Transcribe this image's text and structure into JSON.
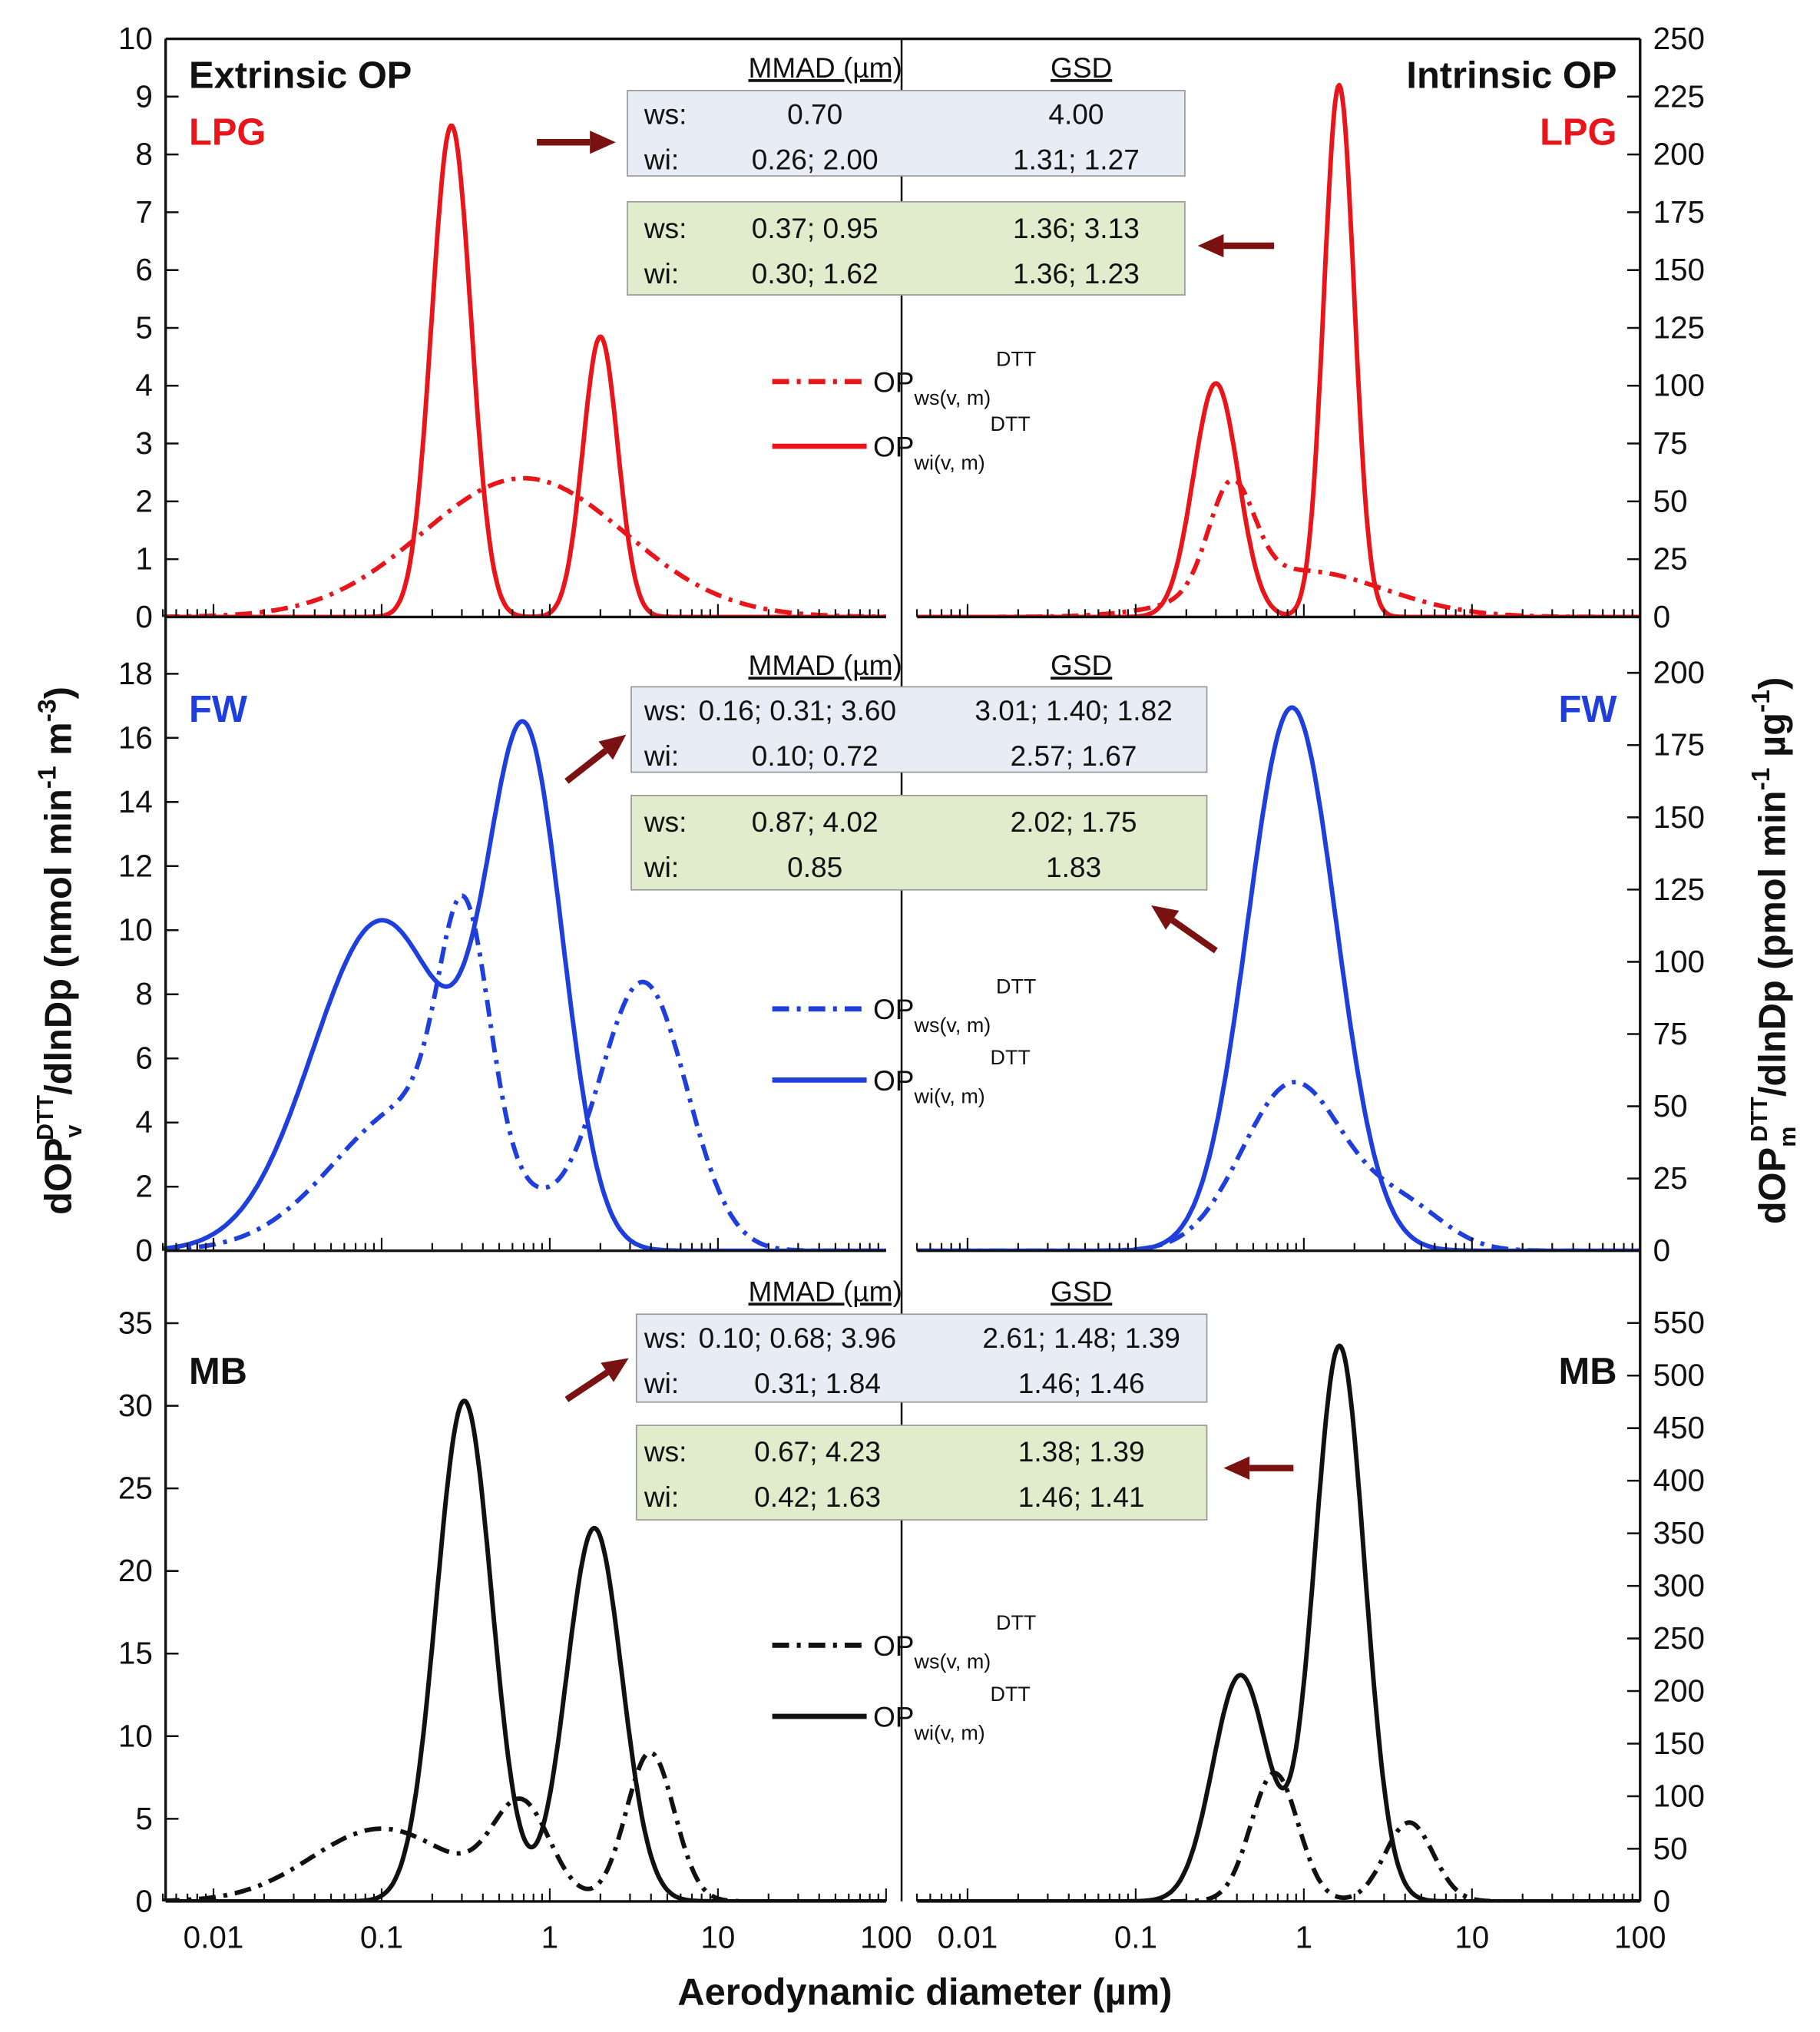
{
  "colors": {
    "LPG": "#e8161b",
    "FW": "#1f3fdc",
    "MB": "#111111",
    "arrow": "#7a1212",
    "table_ws_bg": "#e8ecf5",
    "table_wi_bg": "#e0eccc"
  },
  "titles": {
    "extrinsic": "Extrinsic OP",
    "intrinsic": "Intrinsic OP"
  },
  "axes": {
    "xlabel": "Aerodynamic diameter (µm)",
    "ylabel_left": {
      "main": "dOP",
      "sub": "v",
      "sup": "DTT",
      "rest": "/dlnDp (nmol min",
      "exp1": "-1",
      "mid": " m",
      "exp2": "-3",
      "end": ")"
    },
    "ylabel_right": {
      "main": "dOP",
      "sub": "m",
      "sup": "DTT",
      "rest": "/dlnDp (pmol min",
      "exp1": "-1",
      "mid": " µg",
      "exp2": "-1",
      "end": ")"
    },
    "xticks": [
      "0.01",
      "0.1",
      "1",
      "10",
      "100"
    ],
    "xtick_values": [
      0.01,
      0.1,
      1,
      10,
      100
    ],
    "xscale": "log",
    "xlim": [
      0.005,
      100
    ]
  },
  "legend": {
    "op": "OP",
    "ws_sub": "ws(v, m)",
    "wi_sub": "wi(v, m)",
    "sup": "DTT"
  },
  "chart_data": [
    {
      "type": "line",
      "source": "LPG",
      "side": "extrinsic",
      "label": "LPG",
      "ylim": [
        0,
        10
      ],
      "yticks": [
        0,
        1,
        2,
        3,
        4,
        5,
        6,
        7,
        8,
        9,
        10
      ],
      "series": [
        {
          "key": "ws",
          "style": "dash-dot",
          "modes": [
            {
              "mmad": 0.7,
              "gsd": 4.0,
              "peak": 2.4
            }
          ]
        },
        {
          "key": "wi",
          "style": "solid",
          "modes": [
            {
              "mmad": 0.26,
              "gsd": 1.31,
              "peak": 8.5
            },
            {
              "mmad": 2.0,
              "gsd": 1.27,
              "peak": 4.85
            }
          ]
        }
      ]
    },
    {
      "type": "line",
      "source": "LPG",
      "side": "intrinsic",
      "label": "LPG",
      "ylim": [
        0,
        250
      ],
      "yticks": [
        0,
        25,
        50,
        75,
        100,
        125,
        150,
        175,
        200,
        225,
        250
      ],
      "series": [
        {
          "key": "ws",
          "style": "dash-dot",
          "modes": [
            {
              "mmad": 0.37,
              "gsd": 1.36,
              "peak": 45
            },
            {
              "mmad": 0.95,
              "gsd": 3.13,
              "peak": 20
            }
          ]
        },
        {
          "key": "wi",
          "style": "solid",
          "modes": [
            {
              "mmad": 0.3,
              "gsd": 1.36,
              "peak": 101
            },
            {
              "mmad": 1.62,
              "gsd": 1.23,
              "peak": 230
            }
          ]
        }
      ]
    },
    {
      "type": "line",
      "source": "FW",
      "side": "extrinsic",
      "label": "FW",
      "ylim": [
        0,
        19.65
      ],
      "yticks": [
        0,
        2,
        4,
        6,
        8,
        10,
        12,
        14,
        16,
        18
      ],
      "series": [
        {
          "key": "ws",
          "style": "dash-dot",
          "modes": [
            {
              "mmad": 0.16,
              "gsd": 3.01,
              "peak": 4.6
            },
            {
              "mmad": 0.31,
              "gsd": 1.4,
              "peak": 7.2
            },
            {
              "mmad": 3.6,
              "gsd": 1.82,
              "peak": 8.3
            }
          ]
        },
        {
          "key": "wi",
          "style": "solid",
          "modes": [
            {
              "mmad": 0.1,
              "gsd": 2.57,
              "peak": 10.3
            },
            {
              "mmad": 0.72,
              "gsd": 1.67,
              "peak": 15.3
            }
          ]
        }
      ]
    },
    {
      "type": "line",
      "source": "FW",
      "side": "intrinsic",
      "label": "FW",
      "ylim": [
        0,
        218
      ],
      "yticks": [
        0,
        25,
        50,
        75,
        100,
        125,
        150,
        175,
        200
      ],
      "series": [
        {
          "key": "ws",
          "style": "dash-dot",
          "modes": [
            {
              "mmad": 0.87,
              "gsd": 2.02,
              "peak": 58
            },
            {
              "mmad": 4.02,
              "gsd": 1.75,
              "peak": 14
            }
          ]
        },
        {
          "key": "wi",
          "style": "solid",
          "modes": [
            {
              "mmad": 0.85,
              "gsd": 1.83,
              "peak": 188
            }
          ]
        }
      ]
    },
    {
      "type": "line",
      "source": "MB",
      "side": "extrinsic",
      "label": "MB",
      "ylim": [
        0,
        39.15
      ],
      "yticks": [
        0,
        5,
        10,
        15,
        20,
        25,
        30,
        35
      ],
      "series": [
        {
          "key": "ws",
          "style": "dash-dot",
          "modes": [
            {
              "mmad": 0.1,
              "gsd": 2.61,
              "peak": 4.4
            },
            {
              "mmad": 0.68,
              "gsd": 1.48,
              "peak": 5.6
            },
            {
              "mmad": 3.96,
              "gsd": 1.39,
              "peak": 9.0
            }
          ]
        },
        {
          "key": "wi",
          "style": "solid",
          "modes": [
            {
              "mmad": 0.31,
              "gsd": 1.46,
              "peak": 30.3
            },
            {
              "mmad": 1.84,
              "gsd": 1.46,
              "peak": 22.6
            }
          ]
        }
      ]
    },
    {
      "type": "line",
      "source": "MB",
      "side": "intrinsic",
      "label": "MB",
      "ylim": [
        0,
        615
      ],
      "yticks": [
        0,
        50,
        100,
        150,
        200,
        250,
        300,
        350,
        400,
        450,
        500,
        550
      ],
      "series": [
        {
          "key": "ws",
          "style": "dash-dot",
          "modes": [
            {
              "mmad": 0.67,
              "gsd": 1.38,
              "peak": 122
            },
            {
              "mmad": 4.23,
              "gsd": 1.39,
              "peak": 75
            }
          ]
        },
        {
          "key": "wi",
          "style": "solid",
          "modes": [
            {
              "mmad": 0.42,
              "gsd": 1.46,
              "peak": 215
            },
            {
              "mmad": 1.63,
              "gsd": 1.41,
              "peak": 528
            }
          ]
        }
      ]
    }
  ],
  "tables": [
    {
      "source": "LPG",
      "header": [
        "MMAD (µm)",
        "GSD"
      ],
      "extrinsic": [
        [
          "ws:",
          "0.70",
          "4.00"
        ],
        [
          "wi:",
          "0.26; 2.00",
          "1.31; 1.27"
        ]
      ],
      "intrinsic": [
        [
          "ws:",
          "0.37; 0.95",
          "1.36; 3.13"
        ],
        [
          "wi:",
          "0.30; 1.62",
          "1.36; 1.23"
        ]
      ]
    },
    {
      "source": "FW",
      "header": [
        "MMAD (µm)",
        "GSD"
      ],
      "extrinsic": [
        [
          "ws:",
          "0.16; 0.31; 3.60",
          "3.01; 1.40; 1.82"
        ],
        [
          "wi:",
          "0.10; 0.72",
          "2.57; 1.67"
        ]
      ],
      "intrinsic": [
        [
          "ws:",
          "0.87; 4.02",
          "2.02; 1.75"
        ],
        [
          "wi:",
          "0.85",
          "1.83"
        ]
      ]
    },
    {
      "source": "MB",
      "header": [
        "MMAD (µm)",
        "GSD"
      ],
      "extrinsic": [
        [
          "ws:",
          "0.10; 0.68; 3.96",
          "2.61; 1.48; 1.39"
        ],
        [
          "wi:",
          "0.31; 1.84",
          "1.46; 1.46"
        ]
      ],
      "intrinsic": [
        [
          "ws:",
          "0.67; 4.23",
          "1.38; 1.39"
        ],
        [
          "wi:",
          "0.42; 1.63",
          "1.46; 1.41"
        ]
      ]
    }
  ]
}
